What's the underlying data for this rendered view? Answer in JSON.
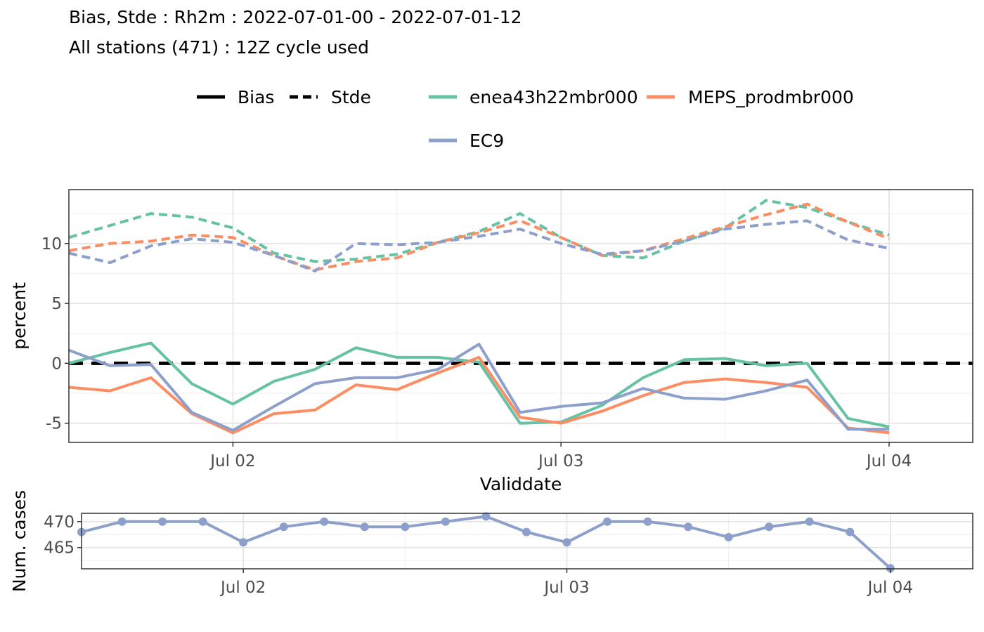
{
  "title_line1": "Bias, Stde : Rh2m : 2022-07-01-00 - 2022-07-01-12",
  "title_line2": "All stations (471) : 12Z cycle used",
  "legend": {
    "linetypes": [
      {
        "label": "Bias",
        "dash": "solid"
      },
      {
        "label": "Stde",
        "dash": "dashed"
      }
    ],
    "models": [
      {
        "label": "enea43h22mbr000",
        "color": "#66C2A5"
      },
      {
        "label": "MEPS_prodmbr000",
        "color": "#FC8D62"
      },
      {
        "label": "EC9",
        "color": "#8DA0CB"
      }
    ]
  },
  "chart_data": [
    {
      "type": "line",
      "xlabel": "Validdate",
      "ylabel": "percent",
      "x_ticks": [
        "Jul 02",
        "Jul 03",
        "Jul 04"
      ],
      "y_ticks": [
        "10",
        "5",
        "0",
        "-5"
      ],
      "y_tick_values": [
        10,
        5,
        0,
        -5
      ],
      "ylim": [
        -6.6,
        14.5
      ],
      "x_hours": [
        12,
        15,
        18,
        21,
        24,
        27,
        30,
        33,
        36,
        39,
        42,
        45,
        48,
        51,
        54,
        57,
        60,
        63,
        66,
        69,
        72
      ],
      "reference_line": {
        "y": 0,
        "style": "dashed",
        "color": "#000000"
      },
      "series": [
        {
          "model": "enea43h22mbr000",
          "metric": "Bias",
          "values": [
            0.0,
            0.9,
            1.7,
            -1.7,
            -3.4,
            -1.5,
            -0.5,
            1.3,
            0.5,
            0.5,
            0.1,
            -5.0,
            -4.9,
            -3.5,
            -1.2,
            0.3,
            0.4,
            -0.2,
            0.0,
            -4.6,
            -5.3
          ]
        },
        {
          "model": "MEPS_prodmbr000",
          "metric": "Bias",
          "values": [
            -2.0,
            -2.3,
            -1.2,
            -4.2,
            -5.8,
            -4.2,
            -3.9,
            -1.8,
            -2.2,
            -0.8,
            0.5,
            -4.5,
            -5.0,
            -4.0,
            -2.7,
            -1.6,
            -1.3,
            -1.6,
            -2.0,
            -5.4,
            -5.8
          ]
        },
        {
          "model": "EC9",
          "metric": "Bias",
          "values": [
            1.1,
            -0.2,
            -0.1,
            -4.1,
            -5.6,
            -3.6,
            -1.7,
            -1.2,
            -1.2,
            -0.5,
            1.6,
            -4.1,
            -3.6,
            -3.3,
            -2.1,
            -2.9,
            -3.0,
            -2.3,
            -1.4,
            -5.5,
            -5.5
          ]
        },
        {
          "model": "enea43h22mbr000",
          "metric": "Stde",
          "values": [
            10.5,
            11.5,
            12.5,
            12.2,
            11.3,
            9.2,
            8.5,
            8.7,
            9.1,
            10.1,
            11.0,
            12.5,
            10.5,
            9.0,
            8.8,
            10.2,
            11.3,
            13.6,
            13.0,
            11.8,
            10.7
          ]
        },
        {
          "model": "MEPS_prodmbr000",
          "metric": "Stde",
          "values": [
            9.4,
            10.0,
            10.2,
            10.7,
            10.5,
            9.0,
            7.8,
            8.5,
            8.8,
            10.1,
            10.9,
            11.9,
            10.5,
            9.0,
            9.4,
            10.4,
            11.4,
            12.4,
            13.3,
            11.8,
            10.4
          ]
        },
        {
          "model": "EC9",
          "metric": "Stde",
          "values": [
            9.2,
            8.4,
            9.8,
            10.4,
            10.1,
            9.0,
            7.7,
            10.0,
            9.9,
            10.1,
            10.6,
            11.2,
            10.0,
            9.1,
            9.4,
            10.2,
            11.2,
            11.6,
            11.9,
            10.3,
            9.6
          ]
        }
      ]
    },
    {
      "type": "line",
      "ylabel": "Num. cases",
      "x_ticks": [
        "Jul 02",
        "Jul 03",
        "Jul 04"
      ],
      "y_ticks": [
        "470",
        "465"
      ],
      "y_tick_values": [
        470,
        465
      ],
      "ylim": [
        460.9,
        471.6
      ],
      "x_hours": [
        12,
        15,
        18,
        21,
        24,
        27,
        30,
        33,
        36,
        39,
        42,
        45,
        48,
        51,
        54,
        57,
        60,
        63,
        66,
        69,
        72
      ],
      "series": [
        {
          "model": "EC9",
          "values": [
            468,
            470,
            470,
            470,
            466,
            469,
            470,
            469,
            469,
            470,
            471,
            468,
            466,
            470,
            470,
            469,
            467,
            469,
            470,
            468,
            461
          ]
        }
      ]
    }
  ]
}
